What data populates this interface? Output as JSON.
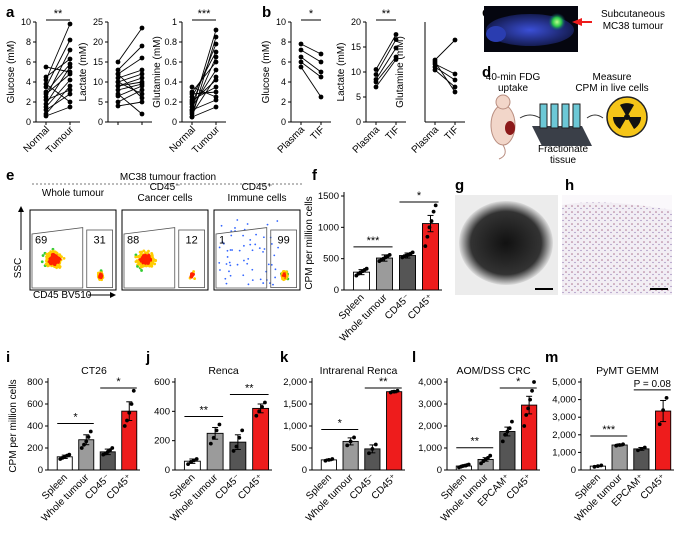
{
  "panel_letters": [
    "a",
    "b",
    "c",
    "d",
    "e",
    "f",
    "g",
    "h",
    "i",
    "j",
    "k",
    "l",
    "m"
  ],
  "colors": {
    "red": "#ee1c1c",
    "dark_gray": "#555555",
    "light_gray": "#9b9b9b",
    "white": "#ffffff",
    "black": "#000000"
  },
  "panel_c": {
    "label": "Subcutaneous MC38 tumour"
  },
  "panel_d": {
    "uptake": "40-min FDG uptake",
    "fractionate": "Fractionate tissue",
    "measure": "Measure CPM in live cells",
    "icons": [
      "mouse-icon",
      "tissue-fractionation-icon",
      "radiation-icon"
    ]
  },
  "panel_e": {
    "header": "MC38 tumour fraction",
    "ylabel": "SSC",
    "xlabel": "CD45 BV510",
    "plots": [
      {
        "title": "Whole tumour",
        "left_pct": "69",
        "right_pct": "31"
      },
      {
        "title": "CD45⁻ Cancer cells",
        "left_pct": "88",
        "right_pct": "12"
      },
      {
        "title": "CD45⁺ Immune cells",
        "left_pct": "1",
        "right_pct": "99"
      }
    ]
  },
  "chart_data": [
    {
      "id": "a1",
      "type": "paired-scatter",
      "categories": [
        "Normal",
        "Tumour"
      ],
      "ylabel": "Glucose (mM)",
      "ylim": [
        0,
        10
      ],
      "yticks": [
        0,
        2,
        4,
        6,
        8,
        10
      ],
      "significance": "**",
      "pairs": [
        [
          4.2,
          9.8
        ],
        [
          3.5,
          8.2
        ],
        [
          2.5,
          7.2
        ],
        [
          4.5,
          6.3
        ],
        [
          3.0,
          5.8
        ],
        [
          1.8,
          5.5
        ],
        [
          5.5,
          5.0
        ],
        [
          2.8,
          4.8
        ],
        [
          1.5,
          4.2
        ],
        [
          0.8,
          3.6
        ],
        [
          2.2,
          3.2
        ],
        [
          1.2,
          2.8
        ],
        [
          3.8,
          2.0
        ],
        [
          0.6,
          1.5
        ]
      ]
    },
    {
      "id": "a2",
      "type": "paired-scatter",
      "categories": [
        "",
        ""
      ],
      "ylabel": "Lactate (mM)",
      "ylim": [
        0,
        25
      ],
      "yticks": [
        0,
        5,
        10,
        15,
        20,
        25
      ],
      "significance": "",
      "pairs": [
        [
          15,
          23.5
        ],
        [
          13,
          19
        ],
        [
          12,
          16
        ],
        [
          11,
          13
        ],
        [
          10,
          12
        ],
        [
          9,
          11
        ],
        [
          9,
          10
        ],
        [
          8,
          9.5
        ],
        [
          6.5,
          9
        ],
        [
          5,
          8
        ],
        [
          10,
          7
        ],
        [
          12,
          6
        ],
        [
          4,
          5
        ],
        [
          7,
          2
        ]
      ]
    },
    {
      "id": "a3",
      "type": "paired-scatter",
      "categories": [
        "Normal",
        "Tumour"
      ],
      "ylabel": "Glutamine (mM)",
      "ylim": [
        0,
        1.0
      ],
      "yticks": [
        0,
        0.2,
        0.4,
        0.6,
        0.8,
        1.0
      ],
      "significance": "***",
      "pairs": [
        [
          0.12,
          0.92
        ],
        [
          0.05,
          0.85
        ],
        [
          0.18,
          0.78
        ],
        [
          0.25,
          0.7
        ],
        [
          0.1,
          0.65
        ],
        [
          0.3,
          0.6
        ],
        [
          0.15,
          0.52
        ],
        [
          0.08,
          0.45
        ],
        [
          0.2,
          0.42
        ],
        [
          0.22,
          0.35
        ],
        [
          0.28,
          0.3
        ],
        [
          0.35,
          0.25
        ],
        [
          0.12,
          0.22
        ],
        [
          0.05,
          0.15
        ]
      ]
    },
    {
      "id": "b1",
      "type": "paired-scatter",
      "categories": [
        "Plasma",
        "TIF"
      ],
      "ylabel": "Glucose (mM)",
      "ylim": [
        0,
        10
      ],
      "yticks": [
        0,
        2,
        4,
        6,
        8,
        10
      ],
      "significance": "*",
      "pairs": [
        [
          7.8,
          6.8
        ],
        [
          7.2,
          6.0
        ],
        [
          6.5,
          5.0
        ],
        [
          6.0,
          4.5
        ],
        [
          5.5,
          2.5
        ]
      ]
    },
    {
      "id": "b2",
      "type": "paired-scatter",
      "categories": [
        "Plasma",
        "TIF"
      ],
      "ylabel": "Lactate (mM)",
      "ylim": [
        0,
        20
      ],
      "yticks": [
        0,
        5,
        10,
        15,
        20
      ],
      "significance": "**",
      "pairs": [
        [
          10.5,
          17.5
        ],
        [
          9.5,
          16.5
        ],
        [
          8.5,
          14.8
        ],
        [
          8.0,
          13.0
        ],
        [
          7.0,
          12.5
        ]
      ]
    },
    {
      "id": "b3",
      "type": "paired-scatter",
      "categories": [
        "Plasma",
        "TIF"
      ],
      "ylabel": "Glutamine (mM)",
      "ylim": [
        0,
        1.0
      ],
      "yticks": [],
      "significance": "",
      "pairs": [
        [
          0.62,
          0.82
        ],
        [
          0.58,
          0.48
        ],
        [
          0.55,
          0.42
        ],
        [
          0.52,
          0.35
        ],
        [
          0.6,
          0.3
        ]
      ]
    },
    {
      "id": "f",
      "type": "bar",
      "categories": [
        "Spleen",
        "Whole tumour",
        "CD45⁻",
        "CD45⁺"
      ],
      "ylabel": "CPM per million cells",
      "ylim": [
        0,
        1500
      ],
      "yticks": [
        0,
        500,
        1000,
        1500
      ],
      "values": [
        285,
        510,
        550,
        1060
      ],
      "errors": [
        40,
        50,
        40,
        130
      ],
      "points": [
        [
          230,
          260,
          280,
          300,
          320,
          340
        ],
        [
          460,
          480,
          500,
          520,
          540,
          560
        ],
        [
          520,
          540,
          550,
          560,
          580,
          600
        ],
        [
          700,
          850,
          1000,
          1100,
          1250,
          1350
        ]
      ],
      "sig": [
        {
          "a": 0,
          "b": 1,
          "text": "***"
        },
        {
          "a": 2,
          "b": 3,
          "text": "*"
        }
      ]
    },
    {
      "id": "i",
      "type": "bar",
      "title": "CT26",
      "categories": [
        "Spleen",
        "Whole tumour",
        "CD45⁻",
        "CD45⁺"
      ],
      "ylabel": "CPM per million cells",
      "ylim": [
        0,
        800
      ],
      "yticks": [
        0,
        200,
        400,
        600,
        800
      ],
      "values": [
        120,
        275,
        165,
        535
      ],
      "errors": [
        15,
        45,
        25,
        85
      ],
      "points": [
        [
          100,
          110,
          120,
          130,
          140
        ],
        [
          200,
          230,
          260,
          300,
          350
        ],
        [
          140,
          150,
          165,
          180,
          200
        ],
        [
          400,
          450,
          520,
          600,
          720
        ]
      ],
      "sig": [
        {
          "a": 0,
          "b": 1,
          "text": "*"
        },
        {
          "a": 2,
          "b": 3,
          "text": "*"
        }
      ]
    },
    {
      "id": "j",
      "type": "bar",
      "title": "Renca",
      "categories": [
        "Spleen",
        "Whole tumour",
        "CD45⁻",
        "CD45⁺"
      ],
      "ylabel": "",
      "ylim": [
        0,
        600
      ],
      "yticks": [
        0,
        200,
        400,
        600
      ],
      "values": [
        60,
        250,
        190,
        420
      ],
      "errors": [
        15,
        40,
        50,
        30
      ],
      "points": [
        [
          40,
          55,
          65,
          75
        ],
        [
          180,
          220,
          270,
          310
        ],
        [
          130,
          160,
          220,
          270
        ],
        [
          370,
          400,
          430,
          460
        ]
      ],
      "sig": [
        {
          "a": 0,
          "b": 1,
          "text": "**"
        },
        {
          "a": 2,
          "b": 3,
          "text": "**"
        }
      ]
    },
    {
      "id": "k",
      "type": "bar",
      "title": "Intrarenal Renca",
      "categories": [
        "Spleen",
        "Whole tumour",
        "CD45⁻",
        "CD45⁺"
      ],
      "ylabel": "",
      "ylim": [
        0,
        2000
      ],
      "yticks": [
        0,
        500,
        1000,
        1500,
        2000
      ],
      "ytick_labels": [
        "0",
        "500",
        "1,000",
        "1,500",
        "2,000"
      ],
      "values": [
        230,
        650,
        480,
        1780
      ],
      "errors": [
        20,
        80,
        90,
        25
      ],
      "points": [
        [
          210,
          230,
          250
        ],
        [
          560,
          650,
          740
        ],
        [
          380,
          480,
          580
        ],
        [
          1760,
          1780,
          1800
        ]
      ],
      "sig": [
        {
          "a": 0,
          "b": 1,
          "text": "*"
        },
        {
          "a": 2,
          "b": 3,
          "text": "**"
        }
      ]
    },
    {
      "id": "l",
      "type": "bar",
      "title": "AOM/DSS CRC",
      "categories": [
        "Spleen",
        "Whole tumour",
        "EPCAM⁺",
        "CD45⁺"
      ],
      "ylabel": "",
      "ylim": [
        0,
        4000
      ],
      "yticks": [
        0,
        1000,
        2000,
        3000,
        4000
      ],
      "ytick_labels": [
        "0",
        "1,000",
        "2,000",
        "3,000",
        "4,000"
      ],
      "values": [
        180,
        480,
        1750,
        2950
      ],
      "errors": [
        40,
        80,
        200,
        400
      ],
      "points": [
        [
          120,
          150,
          180,
          200,
          220,
          250
        ],
        [
          300,
          400,
          480,
          550,
          650
        ],
        [
          1300,
          1600,
          1750,
          1900,
          2200
        ],
        [
          2000,
          2500,
          2800,
          3200,
          3600,
          4000
        ]
      ],
      "sig": [
        {
          "a": 0,
          "b": 1,
          "text": "**"
        },
        {
          "a": 2,
          "b": 3,
          "text": "*"
        }
      ]
    },
    {
      "id": "m",
      "type": "bar",
      "title": "PyMT GEMM",
      "categories": [
        "Spleen",
        "Whole tumour",
        "EPCAM⁺",
        "CD45⁺"
      ],
      "ylabel": "",
      "ylim": [
        0,
        5000
      ],
      "yticks": [
        0,
        1000,
        2000,
        3000,
        4000,
        5000
      ],
      "ytick_labels": [
        "0",
        "1,000",
        "2,000",
        "3,000",
        "4,000",
        "5,000"
      ],
      "values": [
        220,
        1420,
        1200,
        3350
      ],
      "errors": [
        30,
        60,
        80,
        600
      ],
      "points": [
        [
          180,
          220,
          260
        ],
        [
          1380,
          1420,
          1460
        ],
        [
          1120,
          1200,
          1280
        ],
        [
          2600,
          3400,
          4100
        ]
      ],
      "sig": [
        {
          "a": 0,
          "b": 1,
          "text": "***"
        },
        {
          "a": 2,
          "b": 3,
          "text": "P = 0.08"
        }
      ]
    }
  ]
}
